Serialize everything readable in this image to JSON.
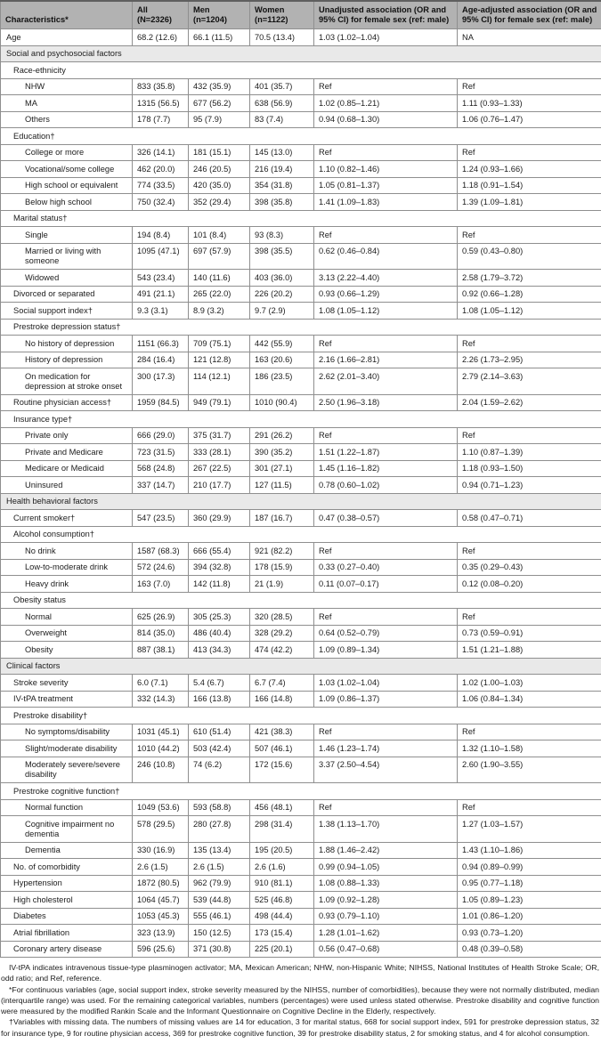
{
  "colors": {
    "header_bg": "#b2b2b2",
    "section_bg": "#e9e9e9",
    "grid": "#8f8f8f"
  },
  "table": {
    "columns": [
      "Characteristics*",
      "All (N=2326)",
      "Men (n=1204)",
      "Women (n=1122)",
      "Unadjusted association (OR and 95% CI) for female sex (ref: male)",
      "Age-adjusted association (OR and 95% CI) for female sex (ref: male)"
    ],
    "rows": [
      {
        "type": "data",
        "indent": 0,
        "label": "Age",
        "values": [
          "68.2 (12.6)",
          "66.1 (11.5)",
          "70.5 (13.4)",
          "1.03 (1.02–1.04)",
          "NA"
        ]
      },
      {
        "type": "section",
        "indent": 0,
        "label": "Social and psychosocial factors"
      },
      {
        "type": "subsection",
        "indent": 1,
        "label": "Race-ethnicity"
      },
      {
        "type": "data",
        "indent": 2,
        "label": "NHW",
        "values": [
          "833 (35.8)",
          "432 (35.9)",
          "401 (35.7)",
          "Ref",
          "Ref"
        ]
      },
      {
        "type": "data",
        "indent": 2,
        "label": "MA",
        "values": [
          "1315 (56.5)",
          "677 (56.2)",
          "638 (56.9)",
          "1.02 (0.85–1.21)",
          "1.11 (0.93–1.33)"
        ]
      },
      {
        "type": "data",
        "indent": 2,
        "label": "Others",
        "values": [
          "178 (7.7)",
          "95 (7.9)",
          "83 (7.4)",
          "0.94 (0.68–1.30)",
          "1.06 (0.76–1.47)"
        ]
      },
      {
        "type": "subsection",
        "indent": 1,
        "label": "Education†"
      },
      {
        "type": "data",
        "indent": 2,
        "label": "College or more",
        "values": [
          "326 (14.1)",
          "181 (15.1)",
          "145 (13.0)",
          "Ref",
          "Ref"
        ]
      },
      {
        "type": "data",
        "indent": 2,
        "label": "Vocational/some college",
        "values": [
          "462 (20.0)",
          "246 (20.5)",
          "216 (19.4)",
          "1.10 (0.82–1.46)",
          "1.24 (0.93–1.66)"
        ]
      },
      {
        "type": "data",
        "indent": 2,
        "label": "High school or equivalent",
        "values": [
          "774 (33.5)",
          "420 (35.0)",
          "354 (31.8)",
          "1.05 (0.81–1.37)",
          "1.18 (0.91–1.54)"
        ]
      },
      {
        "type": "data",
        "indent": 2,
        "label": "Below high school",
        "values": [
          "750 (32.4)",
          "352 (29.4)",
          "398 (35.8)",
          "1.41 (1.09–1.83)",
          "1.39 (1.09–1.81)"
        ]
      },
      {
        "type": "subsection",
        "indent": 1,
        "label": "Marital status†"
      },
      {
        "type": "data",
        "indent": 2,
        "label": "Single",
        "values": [
          "194 (8.4)",
          "101 (8.4)",
          "93 (8.3)",
          "Ref",
          "Ref"
        ]
      },
      {
        "type": "data",
        "indent": 2,
        "label": "Married or living with someone",
        "values": [
          "1095 (47.1)",
          "697 (57.9)",
          "398 (35.5)",
          "0.62 (0.46–0.84)",
          "0.59 (0.43–0.80)"
        ]
      },
      {
        "type": "data",
        "indent": 2,
        "label": "Widowed",
        "values": [
          "543 (23.4)",
          "140 (11.6)",
          "403 (36.0)",
          "3.13 (2.22–4.40)",
          "2.58 (1.79–3.72)"
        ]
      },
      {
        "type": "data",
        "indent": 1,
        "label": "Divorced or separated",
        "values": [
          "491 (21.1)",
          "265 (22.0)",
          "226 (20.2)",
          "0.93 (0.66–1.29)",
          "0.92 (0.66–1.28)"
        ]
      },
      {
        "type": "data",
        "indent": 1,
        "label": "Social support index†",
        "values": [
          "9.3 (3.1)",
          "8.9 (3.2)",
          "9.7 (2.9)",
          "1.08 (1.05–1.12)",
          "1.08 (1.05–1.12)"
        ]
      },
      {
        "type": "subsection",
        "indent": 1,
        "label": "Prestroke depression status†"
      },
      {
        "type": "data",
        "indent": 2,
        "label": "No history of depression",
        "values": [
          "1151 (66.3)",
          "709 (75.1)",
          "442 (55.9)",
          "Ref",
          "Ref"
        ]
      },
      {
        "type": "data",
        "indent": 2,
        "label": "History of depression",
        "values": [
          "284 (16.4)",
          "121 (12.8)",
          "163 (20.6)",
          "2.16 (1.66–2.81)",
          "2.26 (1.73–2.95)"
        ]
      },
      {
        "type": "data",
        "indent": 2,
        "label": "On medication for depression at stroke onset",
        "values": [
          "300 (17.3)",
          "114 (12.1)",
          "186 (23.5)",
          "2.62 (2.01–3.40)",
          "2.79 (2.14–3.63)"
        ]
      },
      {
        "type": "data",
        "indent": 1,
        "label": "Routine physician access†",
        "values": [
          "1959 (84.5)",
          "949 (79.1)",
          "1010 (90.4)",
          "2.50 (1.96–3.18)",
          "2.04 (1.59–2.62)"
        ]
      },
      {
        "type": "subsection",
        "indent": 1,
        "label": "Insurance type†"
      },
      {
        "type": "data",
        "indent": 2,
        "label": "Private only",
        "values": [
          "666 (29.0)",
          "375 (31.7)",
          "291 (26.2)",
          "Ref",
          "Ref"
        ]
      },
      {
        "type": "data",
        "indent": 2,
        "label": "Private and Medicare",
        "values": [
          "723 (31.5)",
          "333 (28.1)",
          "390 (35.2)",
          "1.51 (1.22–1.87)",
          "1.10 (0.87–1.39)"
        ]
      },
      {
        "type": "data",
        "indent": 2,
        "label": "Medicare or Medicaid",
        "values": [
          "568 (24.8)",
          "267 (22.5)",
          "301 (27.1)",
          "1.45 (1.16–1.82)",
          "1.18 (0.93–1.50)"
        ]
      },
      {
        "type": "data",
        "indent": 2,
        "label": "Uninsured",
        "values": [
          "337 (14.7)",
          "210 (17.7)",
          "127 (11.5)",
          "0.78 (0.60–1.02)",
          "0.94 (0.71–1.23)"
        ]
      },
      {
        "type": "section",
        "indent": 0,
        "label": "Health behavioral factors"
      },
      {
        "type": "data",
        "indent": 1,
        "label": "Current smoker†",
        "values": [
          "547 (23.5)",
          "360 (29.9)",
          "187 (16.7)",
          "0.47 (0.38–0.57)",
          "0.58 (0.47–0.71)"
        ]
      },
      {
        "type": "subsection",
        "indent": 1,
        "label": "Alcohol consumption†"
      },
      {
        "type": "data",
        "indent": 2,
        "label": "No drink",
        "values": [
          "1587 (68.3)",
          "666 (55.4)",
          "921 (82.2)",
          "Ref",
          "Ref"
        ]
      },
      {
        "type": "data",
        "indent": 2,
        "label": "Low-to-moderate drink",
        "values": [
          "572 (24.6)",
          "394 (32.8)",
          "178 (15.9)",
          "0.33 (0.27–0.40)",
          "0.35 (0.29–0.43)"
        ]
      },
      {
        "type": "data",
        "indent": 2,
        "label": "Heavy drink",
        "values": [
          "163 (7.0)",
          "142 (11.8)",
          "21 (1.9)",
          "0.11 (0.07–0.17)",
          "0.12 (0.08–0.20)"
        ]
      },
      {
        "type": "subsection",
        "indent": 1,
        "label": "Obesity status"
      },
      {
        "type": "data",
        "indent": 2,
        "label": "Normal",
        "values": [
          "625 (26.9)",
          "305 (25.3)",
          "320 (28.5)",
          "Ref",
          "Ref"
        ]
      },
      {
        "type": "data",
        "indent": 2,
        "label": "Overweight",
        "values": [
          "814 (35.0)",
          "486 (40.4)",
          "328 (29.2)",
          "0.64 (0.52–0.79)",
          "0.73 (0.59–0.91)"
        ]
      },
      {
        "type": "data",
        "indent": 2,
        "label": "Obesity",
        "values": [
          "887 (38.1)",
          "413 (34.3)",
          "474 (42.2)",
          "1.09 (0.89–1.34)",
          "1.51 (1.21–1.88)"
        ]
      },
      {
        "type": "section",
        "indent": 0,
        "label": "Clinical factors"
      },
      {
        "type": "data",
        "indent": 1,
        "label": "Stroke severity",
        "values": [
          "6.0 (7.1)",
          "5.4 (6.7)",
          "6.7 (7.4)",
          "1.03 (1.02–1.04)",
          "1.02 (1.00–1.03)"
        ]
      },
      {
        "type": "data",
        "indent": 1,
        "label": "IV-tPA treatment",
        "values": [
          "332 (14.3)",
          "166 (13.8)",
          "166 (14.8)",
          "1.09 (0.86–1.37)",
          "1.06 (0.84–1.34)"
        ]
      },
      {
        "type": "subsection",
        "indent": 1,
        "label": "Prestroke disability†"
      },
      {
        "type": "data",
        "indent": 2,
        "label": "No symptoms/disability",
        "values": [
          "1031 (45.1)",
          "610 (51.4)",
          "421 (38.3)",
          "Ref",
          "Ref"
        ]
      },
      {
        "type": "data",
        "indent": 2,
        "label": "Slight/moderate disability",
        "values": [
          "1010 (44.2)",
          "503 (42.4)",
          "507 (46.1)",
          "1.46 (1.23–1.74)",
          "1.32 (1.10–1.58)"
        ]
      },
      {
        "type": "data",
        "indent": 2,
        "label": "Moderately severe/severe disability",
        "values": [
          "246 (10.8)",
          "74 (6.2)",
          "172 (15.6)",
          "3.37 (2.50–4.54)",
          "2.60 (1.90–3.55)"
        ]
      },
      {
        "type": "subsection",
        "indent": 1,
        "label": "Prestroke cognitive function†"
      },
      {
        "type": "data",
        "indent": 2,
        "label": "Normal function",
        "values": [
          "1049 (53.6)",
          "593 (58.8)",
          "456 (48.1)",
          "Ref",
          "Ref"
        ]
      },
      {
        "type": "data",
        "indent": 2,
        "label": "Cognitive impairment no dementia",
        "values": [
          "578 (29.5)",
          "280 (27.8)",
          "298 (31.4)",
          "1.38 (1.13–1.70)",
          "1.27 (1.03–1.57)"
        ]
      },
      {
        "type": "data",
        "indent": 2,
        "label": "Dementia",
        "values": [
          "330 (16.9)",
          "135 (13.4)",
          "195 (20.5)",
          "1.88 (1.46–2.42)",
          "1.43 (1.10–1.86)"
        ]
      },
      {
        "type": "data",
        "indent": 1,
        "label": "No. of comorbidity",
        "values": [
          "2.6 (1.5)",
          "2.6 (1.5)",
          "2.6 (1.6)",
          "0.99 (0.94–1.05)",
          "0.94 (0.89–0.99)"
        ]
      },
      {
        "type": "data",
        "indent": 1,
        "label": "Hypertension",
        "values": [
          "1872 (80.5)",
          "962 (79.9)",
          "910 (81.1)",
          "1.08 (0.88–1.33)",
          "0.95 (0.77–1.18)"
        ]
      },
      {
        "type": "data",
        "indent": 1,
        "label": "High cholesterol",
        "values": [
          "1064 (45.7)",
          "539 (44.8)",
          "525 (46.8)",
          "1.09 (0.92–1.28)",
          "1.05 (0.89–1.23)"
        ]
      },
      {
        "type": "data",
        "indent": 1,
        "label": "Diabetes",
        "values": [
          "1053 (45.3)",
          "555 (46.1)",
          "498 (44.4)",
          "0.93 (0.79–1.10)",
          "1.01 (0.86–1.20)"
        ]
      },
      {
        "type": "data",
        "indent": 1,
        "label": "Atrial fibrillation",
        "values": [
          "323 (13.9)",
          "150 (12.5)",
          "173 (15.4)",
          "1.28 (1.01–1.62)",
          "0.93 (0.73–1.20)"
        ]
      },
      {
        "type": "data",
        "indent": 1,
        "label": "Coronary artery disease",
        "values": [
          "596 (25.6)",
          "371 (30.8)",
          "225 (20.1)",
          "0.56 (0.47–0.68)",
          "0.48 (0.39–0.58)"
        ]
      }
    ]
  },
  "footnotes": {
    "abbreviations": "IV-tPA indicates intravenous tissue-type plasminogen activator; MA, Mexican American; NHW, non-Hispanic White; NIHSS, National Institutes of Health Stroke Scale; OR, odd ratio; and Ref, reference.",
    "asterisk": "*For continuous variables (age, social support index, stroke severity measured by the NIHSS, number of comorbidities), because they were not normally distributed, median (interquartile range) was used. For the remaining categorical variables, numbers (percentages) were used unless stated otherwise. Prestroke disability and cognitive function were measured by the modified Rankin Scale and the Informant Questionnaire on Cognitive Decline in the Elderly, respectively.",
    "dagger": "†Variables with missing data. The numbers of missing values are 14 for education, 3 for marital status, 668 for social support index, 591 for prestroke depression status, 32 for insurance type, 9 for routine physician access, 369 for prestroke cognitive function, 39 for prestroke disability status, 2 for smoking status, and 4 for alcohol consumption."
  }
}
